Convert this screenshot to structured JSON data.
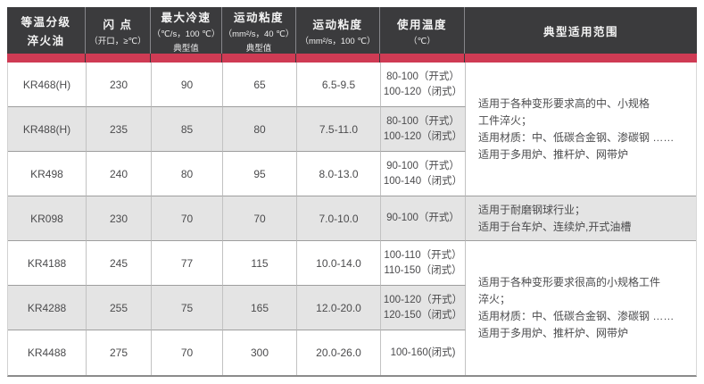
{
  "colors": {
    "header_bg": "#3b3b3d",
    "accent_stripe": "#cf3b54",
    "alt_row_bg": "#e4e4e4",
    "grid_line": "#9e9e9e",
    "column_line": "#c2c2c2",
    "body_text": "#4b4b4d"
  },
  "header": {
    "product": {
      "line1": "等温分级",
      "line2": "淬火油"
    },
    "flash": {
      "line1": "闪 点",
      "line2": "（开口，≥℃）"
    },
    "cooling": {
      "line1": "最大冷速",
      "line2": "（℃/s，100 ℃）",
      "line3": "典型值"
    },
    "visc40": {
      "line1": "运动粘度",
      "line2": "（mm²/s，40 ℃）",
      "line3": "典型值"
    },
    "visc100": {
      "line1": "运动粘度",
      "line2": "（mm²/s，100 ℃）"
    },
    "temp": {
      "line1": "使用温度",
      "line2": "（℃）"
    },
    "application": {
      "line1": "典型适用范围"
    }
  },
  "rows": [
    {
      "name": "KR468(H)",
      "flash": "230",
      "cooling": "90",
      "visc40": "65",
      "visc100": "6.5-9.5",
      "temp1": "80-100（开式）",
      "temp2": "100-120（闭式）"
    },
    {
      "name": "KR488(H)",
      "flash": "235",
      "cooling": "85",
      "visc40": "80",
      "visc100": "7.5-11.0",
      "temp1": "80-100（开式）",
      "temp2": "100-120（闭式）"
    },
    {
      "name": "KR498",
      "flash": "240",
      "cooling": "80",
      "visc40": "95",
      "visc100": "8.0-13.0",
      "temp1": "90-100（开式）",
      "temp2": "100-140（闭式）"
    },
    {
      "name": "KR098",
      "flash": "230",
      "cooling": "70",
      "visc40": "70",
      "visc100": "7.0-10.0",
      "temp1": "90-100（开式）"
    },
    {
      "name": "KR4188",
      "flash": "245",
      "cooling": "77",
      "visc40": "115",
      "visc100": "10.0-14.0",
      "temp1": "100-110（开式）",
      "temp2": "110-150（闭式）"
    },
    {
      "name": "KR4288",
      "flash": "255",
      "cooling": "75",
      "visc40": "165",
      "visc100": "12.0-20.0",
      "temp1": "100-120（开式）",
      "temp2": "120-150（闭式）"
    },
    {
      "name": "KR4488",
      "flash": "275",
      "cooling": "70",
      "visc40": "300",
      "visc100": "20.0-26.0",
      "temp1": "100-160(闭式)"
    }
  ],
  "applications": {
    "block1": {
      "lines": [
        "适用于各种变形要求高的中、小规格",
        "工件淬火；",
        "适用材质：中、低碳合金钢、渗碳钢 ……",
        "适用于多用炉、推杆炉、网带炉"
      ]
    },
    "block2": {
      "lines": [
        "适用于耐磨钢球行业；",
        "适用于台车炉、连续炉,开式油槽"
      ]
    },
    "block3": {
      "lines": [
        "适用于各种变形要求很高的小规格工件",
        "淬火；",
        "适用材质：中、低碳合金钢、渗碳钢 ……",
        "适用于多用炉、推杆炉、网带炉"
      ]
    }
  }
}
